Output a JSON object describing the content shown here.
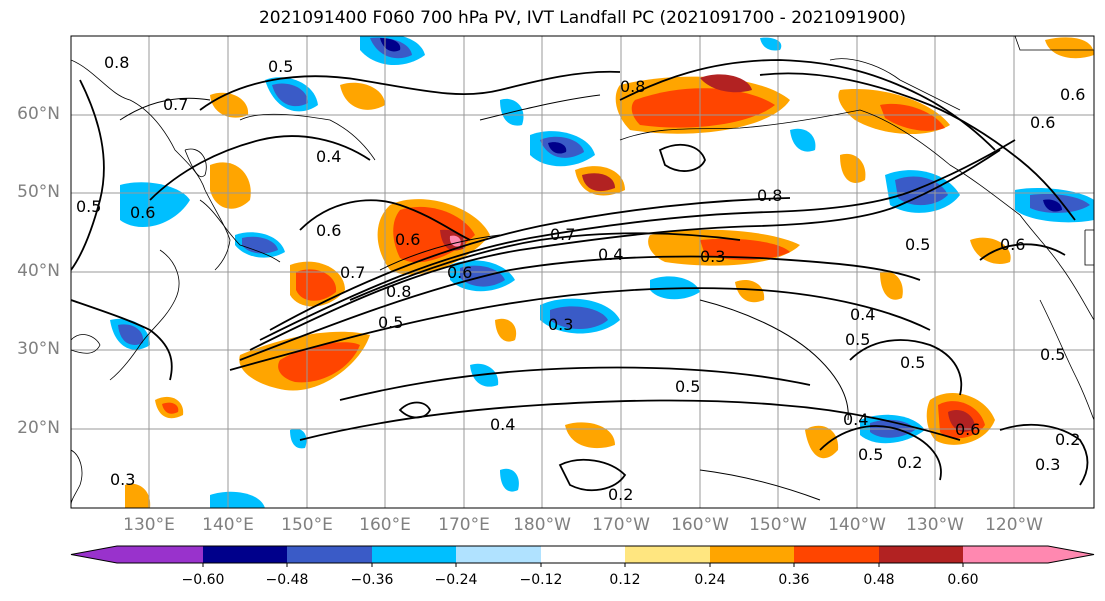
{
  "title": "2021091400 F060 700 hPa PV, IVT Landfall PC (2021091700 - 2021091900)",
  "map": {
    "lat_labels": [
      "60°N",
      "50°N",
      "40°N",
      "30°N",
      "20°N"
    ],
    "lon_labels": [
      "130°E",
      "140°E",
      "150°E",
      "160°E",
      "170°E",
      "180°W",
      "170°W",
      "160°W",
      "150°W",
      "140°W",
      "130°W",
      "120°W"
    ],
    "contour_labels": [
      "0.8",
      "0.5",
      "0.7",
      "0.4",
      "0.8",
      "0.5",
      "0.6",
      "0.6",
      "0.6",
      "0.7",
      "0.8",
      "0.6",
      "0.5",
      "0.7",
      "0.4",
      "0.3",
      "0.8",
      "0.5",
      "0.6",
      "0.3",
      "0.4",
      "0.5",
      "0.5",
      "0.4",
      "0.5",
      "0.6",
      "0.4",
      "0.2",
      "0.5",
      "0.3",
      "0.2",
      "0.2",
      "0.3",
      "0.6",
      "0.6",
      "0.5"
    ]
  },
  "colorbar": {
    "ticks": [
      "−0.60",
      "−0.48",
      "−0.36",
      "−0.24",
      "−0.12",
      "0.12",
      "0.24",
      "0.36",
      "0.48",
      "0.60"
    ],
    "colors": [
      "#9932cc",
      "#00008b",
      "#3a5bc7",
      "#00bfff",
      "#b0e2ff",
      "#ffffff",
      "#ffe680",
      "#ffa500",
      "#ff4500",
      "#b22222",
      "#ff88b0"
    ]
  }
}
